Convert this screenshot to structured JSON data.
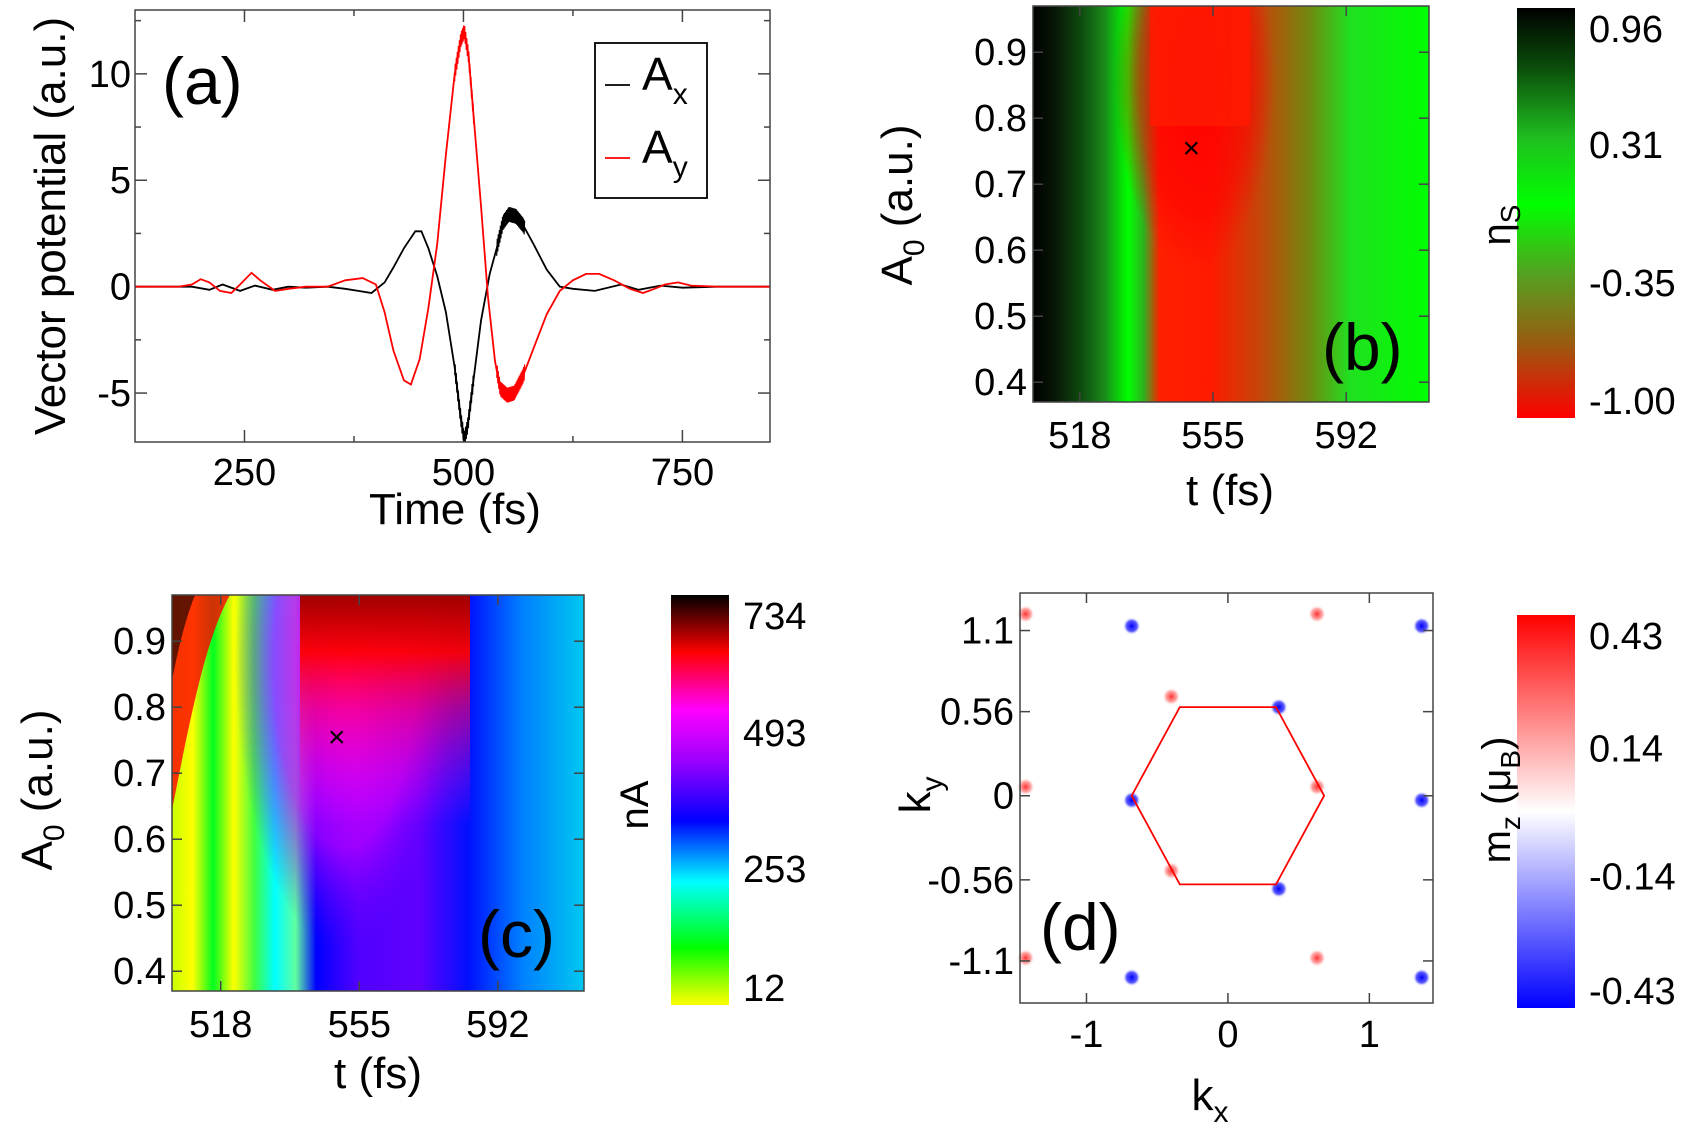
{
  "chart_data": [
    {
      "panel": "(a)",
      "type": "line",
      "xlabel": "Time (fs)",
      "ylabel": "Vector potential (a.u.)",
      "xlim": [
        125,
        850
      ],
      "ylim": [
        -7.3,
        13
      ],
      "xticks": [
        "250",
        "500",
        "750"
      ],
      "yticks": [
        "-5",
        "0",
        "5",
        "10"
      ],
      "legend": {
        "placement": "top-right",
        "entries": [
          "A_x",
          "A_y"
        ],
        "main": "A",
        "subs": [
          "x",
          "y"
        ]
      },
      "series": [
        {
          "name": "A_x",
          "color": "#000000",
          "points": [
            [
              125,
              0
            ],
            [
              190,
              0
            ],
            [
              210,
              -0.15
            ],
            [
              225,
              0.1
            ],
            [
              245,
              -0.2
            ],
            [
              262,
              0.05
            ],
            [
              282,
              -0.15
            ],
            [
              300,
              0
            ],
            [
              320,
              -0.05
            ],
            [
              345,
              0
            ],
            [
              365,
              -0.1
            ],
            [
              380,
              -0.2
            ],
            [
              395,
              -0.3
            ],
            [
              410,
              0.2
            ],
            [
              420,
              0.9
            ],
            [
              432,
              1.8
            ],
            [
              445,
              2.6
            ],
            [
              452,
              2.6
            ],
            [
              460,
              1.8
            ],
            [
              470,
              0.5
            ],
            [
              480,
              -1.2
            ],
            [
              490,
              -3.8
            ],
            [
              497,
              -6.2
            ],
            [
              501,
              -7.2
            ],
            [
              505,
              -6.5
            ],
            [
              512,
              -4.2
            ],
            [
              520,
              -1.6
            ],
            [
              530,
              0.6
            ],
            [
              538,
              1.8
            ],
            [
              545,
              3.0
            ],
            [
              552,
              3.4
            ],
            [
              560,
              3.3
            ],
            [
              568,
              2.9
            ],
            [
              580,
              2.0
            ],
            [
              595,
              0.8
            ],
            [
              610,
              0
            ],
            [
              625,
              -0.1
            ],
            [
              650,
              -0.2
            ],
            [
              680,
              0.1
            ],
            [
              700,
              -0.15
            ],
            [
              725,
              0.05
            ],
            [
              750,
              -0.05
            ],
            [
              790,
              0
            ],
            [
              850,
              0
            ]
          ]
        },
        {
          "name": "A_y",
          "color": "#ff0000",
          "points": [
            [
              125,
              0
            ],
            [
              175,
              0
            ],
            [
              190,
              0.1
            ],
            [
              200,
              0.35
            ],
            [
              210,
              0.2
            ],
            [
              222,
              -0.2
            ],
            [
              235,
              -0.3
            ],
            [
              245,
              0.1
            ],
            [
              258,
              0.65
            ],
            [
              268,
              0.3
            ],
            [
              285,
              -0.2
            ],
            [
              300,
              -0.1
            ],
            [
              320,
              0
            ],
            [
              345,
              0
            ],
            [
              365,
              0.3
            ],
            [
              385,
              0.4
            ],
            [
              400,
              0.1
            ],
            [
              410,
              -1.2
            ],
            [
              420,
              -3.0
            ],
            [
              432,
              -4.4
            ],
            [
              440,
              -4.6
            ],
            [
              450,
              -3.4
            ],
            [
              460,
              -1.0
            ],
            [
              470,
              2.0
            ],
            [
              480,
              6.2
            ],
            [
              490,
              10.0
            ],
            [
              497,
              11.6
            ],
            [
              501,
              12.0
            ],
            [
              506,
              10.8
            ],
            [
              512,
              7.8
            ],
            [
              520,
              3.8
            ],
            [
              528,
              -0.5
            ],
            [
              536,
              -3.5
            ],
            [
              542,
              -4.8
            ],
            [
              550,
              -5.1
            ],
            [
              558,
              -5.0
            ],
            [
              568,
              -4.2
            ],
            [
              580,
              -2.9
            ],
            [
              595,
              -1.3
            ],
            [
              610,
              -0.2
            ],
            [
              625,
              0.3
            ],
            [
              640,
              0.6
            ],
            [
              655,
              0.6
            ],
            [
              672,
              0.3
            ],
            [
              690,
              -0.1
            ],
            [
              705,
              -0.3
            ],
            [
              718,
              -0.1
            ],
            [
              730,
              0.1
            ],
            [
              745,
              0.2
            ],
            [
              760,
              0.05
            ],
            [
              790,
              0
            ],
            [
              850,
              0
            ]
          ]
        }
      ],
      "oscillation_windows": [
        [
          490,
          512
        ],
        [
          538,
          570
        ]
      ]
    },
    {
      "panel": "(b)",
      "type": "heatmap",
      "xlabel": "t (fs)",
      "ylabel": "A_0 (a.u.)",
      "ylabel_main": "A",
      "ylabel_sub": "0",
      "ylabel_tail": " (a.u.)",
      "xlim": [
        505,
        615
      ],
      "ylim": [
        0.37,
        0.97
      ],
      "xticks": [
        "518",
        "555",
        "592"
      ],
      "yticks": [
        "0.4",
        "0.5",
        "0.6",
        "0.7",
        "0.8",
        "0.9"
      ],
      "marker": {
        "symbol": "×",
        "t": 549,
        "A0": 0.755
      },
      "colorbar": {
        "label": "η_S",
        "label_main": "η",
        "label_sub": "S",
        "ticks": [
          "0.96",
          "0.31",
          "-0.35",
          "-1.00"
        ],
        "range": [
          -1.0,
          0.96
        ],
        "colors": [
          "#ff0000",
          "#9a5a10",
          "#55a020",
          "#00ff00",
          "#20c020",
          "#0a4a0a",
          "#000000"
        ]
      }
    },
    {
      "panel": "(c)",
      "type": "heatmap",
      "xlabel": "t (fs)",
      "ylabel": "A_0 (a.u.)",
      "ylabel_main": "A",
      "ylabel_sub": "0",
      "ylabel_tail": " (a.u.)",
      "xlim": [
        505,
        615
      ],
      "ylim": [
        0.37,
        0.97
      ],
      "xticks": [
        "518",
        "555",
        "592"
      ],
      "yticks": [
        "0.4",
        "0.5",
        "0.6",
        "0.7",
        "0.8",
        "0.9"
      ],
      "marker": {
        "symbol": "×",
        "t": 549,
        "A0": 0.755
      },
      "colorbar": {
        "label": "nA",
        "ticks": [
          "734",
          "493",
          "253",
          "12"
        ],
        "range": [
          12,
          734
        ],
        "colors": [
          "#ffff00",
          "#00ff00",
          "#00ffff",
          "#0000ff",
          "#a000ff",
          "#ff00ff",
          "#ff0000",
          "#000000"
        ]
      }
    },
    {
      "panel": "(d)",
      "type": "scatter",
      "xlabel": "k_x",
      "xlabel_main": "k",
      "xlabel_sub": "x",
      "ylabel": "k_y",
      "ylabel_main": "k",
      "ylabel_sub": "y",
      "xlim": [
        -1.47,
        1.45
      ],
      "ylim": [
        -1.38,
        1.35
      ],
      "xticks": [
        "-1",
        "0",
        "1"
      ],
      "yticks": [
        "1.1",
        "0.56",
        "0",
        "-0.56",
        "-1.1"
      ],
      "hexagon": {
        "color": "#ff0000",
        "vertices": [
          [
            0.68,
            0
          ],
          [
            0.34,
            0.59
          ],
          [
            -0.34,
            0.59
          ],
          [
            -0.68,
            0
          ],
          [
            -0.34,
            -0.59
          ],
          [
            0.34,
            -0.59
          ]
        ]
      },
      "points": [
        {
          "x": -1.43,
          "y": 1.21,
          "sign": "pos"
        },
        {
          "x": -0.68,
          "y": 1.13,
          "sign": "neg"
        },
        {
          "x": 0.63,
          "y": 1.21,
          "sign": "pos"
        },
        {
          "x": 1.37,
          "y": 1.13,
          "sign": "neg"
        },
        {
          "x": -0.4,
          "y": 0.66,
          "sign": "pos"
        },
        {
          "x": 0.36,
          "y": 0.59,
          "sign": "neg"
        },
        {
          "x": -1.43,
          "y": 0.06,
          "sign": "pos"
        },
        {
          "x": -0.68,
          "y": -0.03,
          "sign": "neg"
        },
        {
          "x": 0.63,
          "y": 0.06,
          "sign": "pos"
        },
        {
          "x": 1.37,
          "y": -0.03,
          "sign": "neg"
        },
        {
          "x": -0.4,
          "y": -0.5,
          "sign": "pos"
        },
        {
          "x": 0.36,
          "y": -0.62,
          "sign": "neg"
        },
        {
          "x": -1.43,
          "y": -1.08,
          "sign": "pos"
        },
        {
          "x": -0.68,
          "y": -1.21,
          "sign": "neg"
        },
        {
          "x": 0.63,
          "y": -1.08,
          "sign": "pos"
        },
        {
          "x": 1.37,
          "y": -1.21,
          "sign": "neg"
        }
      ],
      "colorbar": {
        "label": "m_z (μ_B)",
        "label_main": "m",
        "label_sub1": "z",
        "label_mid": " (μ",
        "label_sub2": "B",
        "label_end": ")",
        "ticks": [
          "0.43",
          "0.14",
          "-0.14",
          "-0.43"
        ],
        "range": [
          -0.43,
          0.43
        ],
        "colors": [
          "#0000ff",
          "#ffffff",
          "#ff0000"
        ]
      }
    }
  ]
}
